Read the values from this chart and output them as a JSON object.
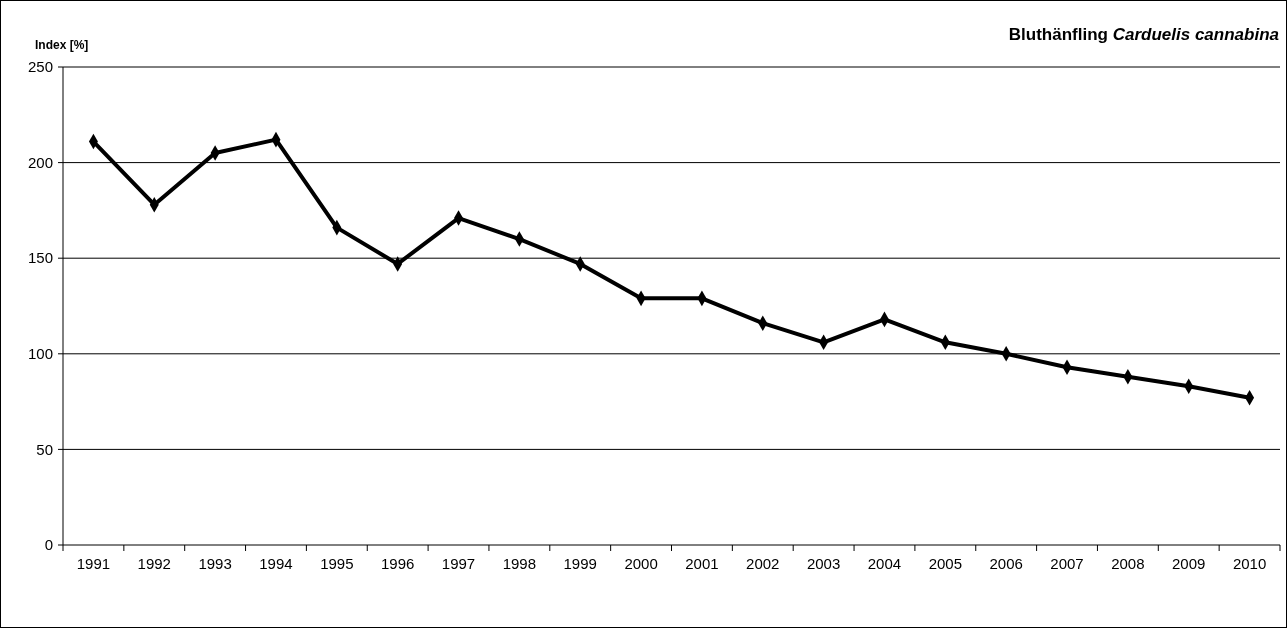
{
  "chart_data": {
    "type": "line",
    "title": "Bluthänfling Carduelis cannabina",
    "ylabel": "Index [%]",
    "categories": [
      "1991",
      "1992",
      "1993",
      "1994",
      "1995",
      "1996",
      "1997",
      "1998",
      "1999",
      "2000",
      "2001",
      "2002",
      "2003",
      "2004",
      "2005",
      "2006",
      "2007",
      "2008",
      "2009",
      "2010"
    ],
    "series": [
      {
        "color": "#000000",
        "values": [
          211,
          178,
          205,
          212,
          166,
          147,
          171,
          160,
          147,
          129,
          129,
          116,
          106,
          118,
          106,
          100,
          93,
          88,
          83,
          77
        ]
      }
    ],
    "ylim": [
      0,
      250
    ],
    "yticks": [
      0,
      50,
      100,
      150,
      200,
      250
    ],
    "grid": "y",
    "marker": "diamond",
    "line_style": "solid"
  }
}
